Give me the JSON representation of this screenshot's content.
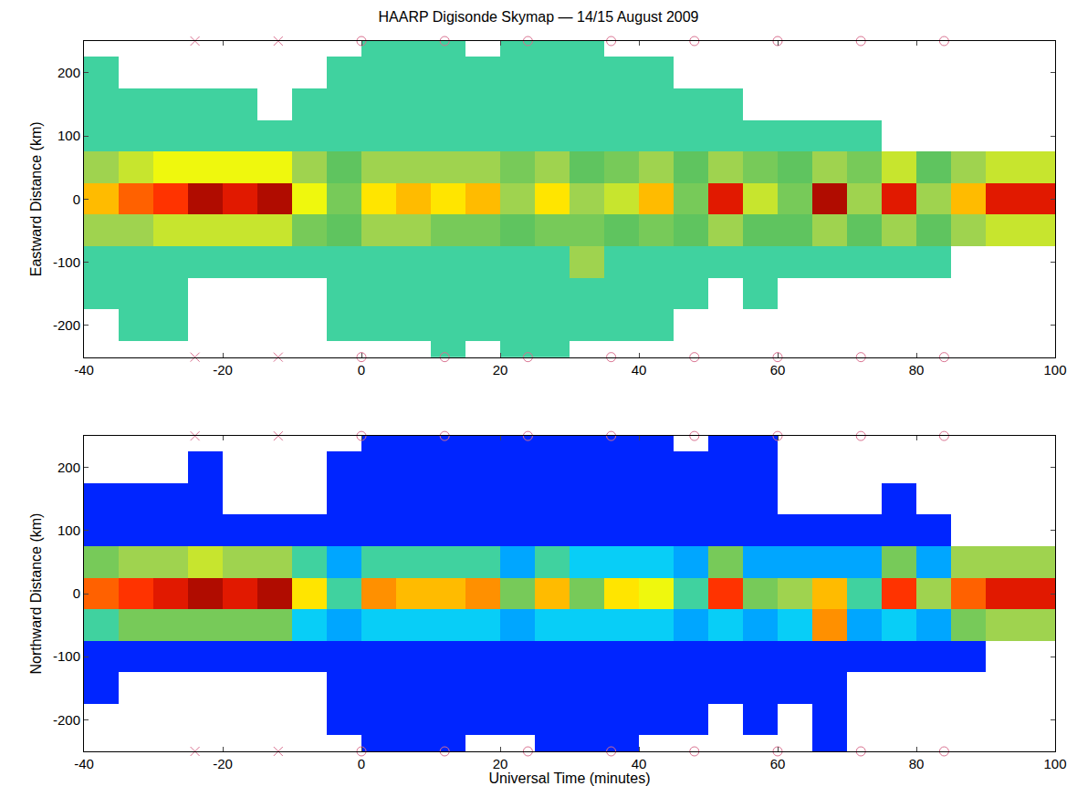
{
  "chart_data": [
    {
      "type": "heatmap",
      "title": "HAARP Digisonde Skymap — 14/15 August 2009",
      "ylabel": "Eastward Distance (km)",
      "xlim": [
        -40,
        100
      ],
      "xticks": [
        -40,
        -20,
        0,
        20,
        40,
        60,
        80,
        100
      ],
      "ylim": [
        -250,
        250
      ],
      "yticks": [
        -200,
        -100,
        0,
        100,
        200
      ],
      "zlim": [
        0,
        1
      ],
      "x": [
        -37.5,
        -32.5,
        -27.5,
        -22.5,
        -17.5,
        -12.5,
        -7.5,
        -2.5,
        2.5,
        7.5,
        12.5,
        17.5,
        22.5,
        27.5,
        32.5,
        37.5,
        42.5,
        47.5,
        52.5,
        57.5,
        62.5,
        67.5,
        72.5,
        77.5,
        82.5,
        87.5,
        92.5,
        97.5
      ],
      "y": [
        -250,
        -200,
        -150,
        -100,
        -50,
        0,
        50,
        100,
        150,
        200,
        250
      ],
      "z": [
        [
          null,
          null,
          null,
          null,
          null,
          null,
          null,
          null,
          null,
          null,
          0.4,
          null,
          0.4,
          0.4,
          null,
          null,
          null,
          null,
          null,
          null,
          null,
          null,
          null,
          null,
          null,
          null,
          null,
          null
        ],
        [
          null,
          0.4,
          0.4,
          null,
          null,
          null,
          null,
          0.4,
          0.4,
          0.4,
          0.4,
          0.4,
          0.4,
          0.4,
          0.4,
          0.4,
          0.4,
          null,
          null,
          null,
          null,
          null,
          null,
          null,
          null,
          null,
          null,
          null
        ],
        [
          0.4,
          0.4,
          0.4,
          null,
          null,
          null,
          null,
          0.4,
          0.4,
          0.4,
          0.4,
          0.4,
          0.4,
          0.4,
          0.4,
          0.4,
          0.4,
          0.4,
          null,
          0.4,
          null,
          null,
          null,
          null,
          null,
          null,
          null,
          null
        ],
        [
          0.4,
          0.4,
          0.4,
          0.4,
          0.4,
          0.4,
          0.4,
          0.4,
          0.4,
          0.4,
          0.4,
          0.4,
          0.4,
          0.4,
          0.5,
          0.4,
          0.4,
          0.4,
          0.4,
          0.4,
          0.4,
          0.4,
          0.4,
          0.4,
          0.4,
          null,
          null,
          null
        ],
        [
          0.5,
          0.5,
          0.55,
          0.55,
          0.55,
          0.55,
          0.45,
          0.42,
          0.5,
          0.5,
          0.45,
          0.45,
          0.42,
          0.45,
          0.45,
          0.42,
          0.45,
          0.42,
          0.5,
          0.42,
          0.42,
          0.5,
          0.42,
          0.5,
          0.42,
          0.5,
          0.55,
          0.55
        ],
        [
          0.7,
          0.8,
          0.85,
          0.95,
          0.9,
          0.95,
          0.6,
          0.45,
          0.65,
          0.7,
          0.65,
          0.7,
          0.5,
          0.65,
          0.5,
          0.55,
          0.7,
          0.45,
          0.9,
          0.55,
          0.45,
          0.95,
          0.5,
          0.9,
          0.5,
          0.7,
          0.9,
          0.9
        ],
        [
          0.5,
          0.55,
          0.6,
          0.6,
          0.6,
          0.6,
          0.5,
          0.42,
          0.5,
          0.5,
          0.5,
          0.5,
          0.45,
          0.5,
          0.42,
          0.45,
          0.5,
          0.42,
          0.5,
          0.45,
          0.42,
          0.5,
          0.45,
          0.55,
          0.42,
          0.5,
          0.55,
          0.55
        ],
        [
          0.4,
          0.4,
          0.4,
          0.4,
          0.4,
          0.4,
          0.4,
          0.4,
          0.4,
          0.4,
          0.4,
          0.4,
          0.4,
          0.4,
          0.4,
          0.4,
          0.4,
          0.4,
          0.4,
          0.4,
          0.4,
          0.4,
          0.4,
          null,
          null,
          null,
          null,
          null
        ],
        [
          0.4,
          0.4,
          0.4,
          0.4,
          0.4,
          null,
          0.4,
          0.4,
          0.4,
          0.4,
          0.4,
          0.4,
          0.4,
          0.4,
          0.4,
          0.4,
          0.4,
          0.4,
          0.4,
          null,
          null,
          null,
          null,
          null,
          null,
          null,
          null,
          null
        ],
        [
          0.4,
          null,
          null,
          null,
          null,
          null,
          null,
          0.4,
          0.4,
          0.4,
          0.4,
          0.4,
          0.4,
          0.4,
          0.4,
          0.4,
          0.4,
          null,
          null,
          null,
          null,
          null,
          null,
          null,
          null,
          null,
          null,
          null
        ],
        [
          null,
          null,
          null,
          null,
          null,
          null,
          null,
          null,
          0.4,
          0.4,
          0.4,
          null,
          0.4,
          0.4,
          0.4,
          null,
          null,
          null,
          null,
          null,
          null,
          null,
          null,
          null,
          null,
          null,
          null,
          null
        ]
      ],
      "series": [
        {
          "marker": "x",
          "color": "#d9708f",
          "x": [
            -24,
            -12,
            -24,
            -12
          ],
          "y": [
            250,
            250,
            -250,
            -250
          ]
        },
        {
          "marker": "circle",
          "color": "#d9708f",
          "x": [
            0,
            12,
            24,
            36,
            48,
            60,
            72,
            84,
            0,
            12,
            24,
            36,
            48,
            60,
            72,
            84
          ],
          "y": [
            250,
            250,
            250,
            250,
            250,
            250,
            250,
            250,
            -250,
            -250,
            -250,
            -250,
            -250,
            -250,
            -250,
            -250
          ]
        }
      ]
    },
    {
      "type": "heatmap",
      "xlabel": "Universal Time (minutes)",
      "ylabel": "Northward Distance (km)",
      "xlim": [
        -40,
        100
      ],
      "xticks": [
        -40,
        -20,
        0,
        20,
        40,
        60,
        80,
        100
      ],
      "ylim": [
        -250,
        250
      ],
      "yticks": [
        -200,
        -100,
        0,
        100,
        200
      ],
      "zlim": [
        0,
        1
      ],
      "x": [
        -37.5,
        -32.5,
        -27.5,
        -22.5,
        -17.5,
        -12.5,
        -7.5,
        -2.5,
        2.5,
        7.5,
        12.5,
        17.5,
        22.5,
        27.5,
        32.5,
        37.5,
        42.5,
        47.5,
        52.5,
        57.5,
        62.5,
        67.5,
        72.5,
        77.5,
        82.5,
        87.5,
        92.5,
        97.5
      ],
      "y": [
        -250,
        -200,
        -150,
        -100,
        -50,
        0,
        50,
        100,
        150,
        200,
        250
      ],
      "z": [
        [
          null,
          null,
          null,
          null,
          null,
          null,
          null,
          null,
          0.15,
          0.15,
          0.15,
          null,
          null,
          0.15,
          0.15,
          0.15,
          null,
          null,
          null,
          null,
          null,
          0.15,
          null,
          null,
          null,
          null,
          null,
          null
        ],
        [
          null,
          null,
          null,
          null,
          null,
          null,
          null,
          0.15,
          0.15,
          0.15,
          0.15,
          0.15,
          0.15,
          0.15,
          0.15,
          0.15,
          0.15,
          0.15,
          null,
          0.15,
          null,
          0.15,
          null,
          null,
          null,
          null,
          null,
          null
        ],
        [
          0.15,
          null,
          null,
          null,
          null,
          null,
          null,
          0.15,
          0.15,
          0.15,
          0.15,
          0.15,
          0.15,
          0.15,
          0.15,
          0.15,
          0.15,
          0.15,
          0.15,
          0.15,
          0.15,
          0.15,
          null,
          null,
          null,
          null,
          null,
          null
        ],
        [
          0.15,
          0.15,
          0.15,
          0.15,
          0.15,
          0.15,
          0.15,
          0.15,
          0.15,
          0.15,
          0.15,
          0.15,
          0.15,
          0.15,
          0.15,
          0.15,
          0.15,
          0.15,
          0.15,
          0.15,
          0.15,
          0.15,
          0.15,
          0.15,
          0.15,
          0.15,
          null,
          null
        ],
        [
          0.4,
          0.45,
          0.45,
          0.45,
          0.45,
          0.45,
          0.35,
          0.3,
          0.35,
          0.35,
          0.35,
          0.35,
          0.3,
          0.35,
          0.35,
          0.35,
          0.35,
          0.3,
          0.35,
          0.3,
          0.35,
          0.75,
          0.3,
          0.35,
          0.3,
          0.45,
          0.5,
          0.5
        ],
        [
          0.8,
          0.85,
          0.9,
          0.95,
          0.9,
          0.95,
          0.65,
          0.4,
          0.75,
          0.7,
          0.7,
          0.75,
          0.45,
          0.7,
          0.45,
          0.65,
          0.6,
          0.4,
          0.85,
          0.45,
          0.5,
          0.7,
          0.4,
          0.85,
          0.5,
          0.8,
          0.9,
          0.9
        ],
        [
          0.45,
          0.5,
          0.5,
          0.55,
          0.5,
          0.5,
          0.4,
          0.3,
          0.4,
          0.4,
          0.4,
          0.4,
          0.3,
          0.4,
          0.35,
          0.35,
          0.35,
          0.3,
          0.45,
          0.3,
          0.3,
          0.3,
          0.3,
          0.45,
          0.3,
          0.5,
          0.5,
          0.5
        ],
        [
          0.15,
          0.15,
          0.15,
          0.15,
          0.15,
          0.15,
          0.15,
          0.15,
          0.15,
          0.15,
          0.15,
          0.15,
          0.15,
          0.15,
          0.15,
          0.15,
          0.15,
          0.15,
          0.15,
          0.15,
          0.15,
          0.15,
          0.15,
          0.15,
          0.15,
          null,
          null,
          null
        ],
        [
          0.15,
          0.15,
          0.15,
          0.15,
          null,
          null,
          null,
          0.15,
          0.15,
          0.15,
          0.15,
          0.15,
          0.15,
          0.15,
          0.15,
          0.15,
          0.15,
          0.15,
          0.15,
          0.15,
          null,
          null,
          null,
          0.15,
          null,
          null,
          null,
          null
        ],
        [
          null,
          null,
          null,
          0.15,
          null,
          null,
          null,
          0.15,
          0.15,
          0.15,
          0.15,
          0.15,
          0.15,
          0.15,
          0.15,
          0.15,
          0.15,
          0.15,
          0.15,
          0.15,
          null,
          null,
          null,
          null,
          null,
          null,
          null,
          null
        ],
        [
          null,
          null,
          null,
          null,
          null,
          null,
          null,
          null,
          0.15,
          0.15,
          0.15,
          0.15,
          0.15,
          0.15,
          0.15,
          0.15,
          0.15,
          null,
          0.15,
          0.15,
          null,
          null,
          null,
          null,
          null,
          null,
          null,
          null
        ]
      ],
      "series": [
        {
          "marker": "x",
          "color": "#d9708f",
          "x": [
            -24,
            -12,
            -24,
            -12
          ],
          "y": [
            250,
            250,
            -250,
            -250
          ]
        },
        {
          "marker": "circle",
          "color": "#d9708f",
          "x": [
            0,
            12,
            24,
            36,
            48,
            60,
            72,
            84,
            0,
            12,
            24,
            36,
            48,
            60,
            72,
            84
          ],
          "y": [
            250,
            250,
            250,
            250,
            250,
            250,
            250,
            250,
            -250,
            -250,
            -250,
            -250,
            -250,
            -250,
            -250,
            -250
          ]
        }
      ]
    }
  ]
}
